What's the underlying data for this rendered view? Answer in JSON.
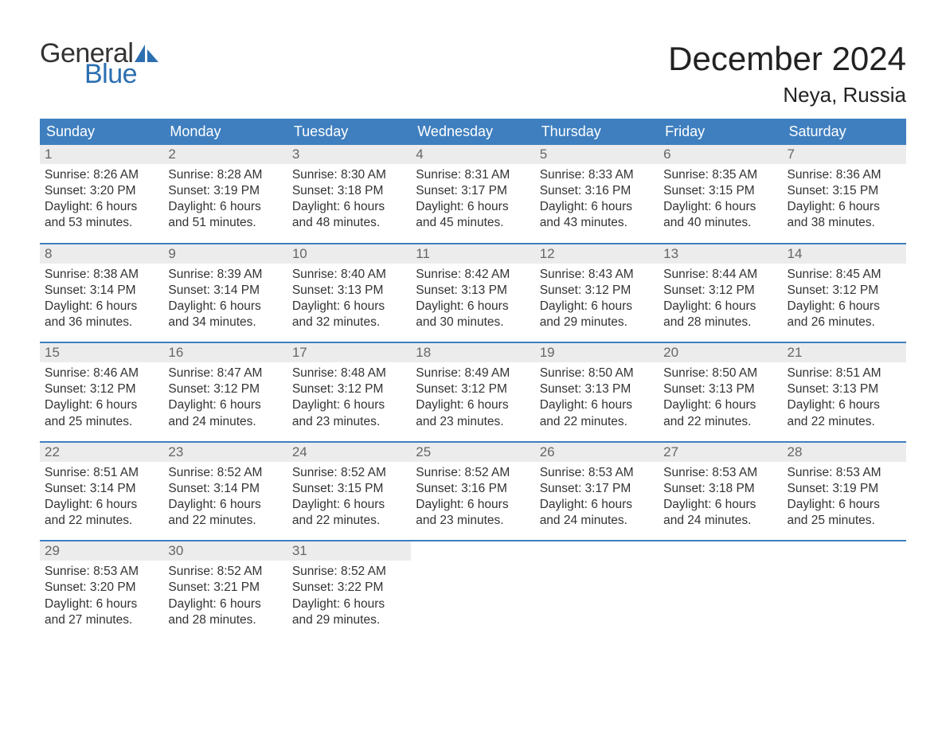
{
  "logo": {
    "text1": "General",
    "text2": "Blue",
    "sail_color": "#2c6fb0",
    "text_color": "#333333"
  },
  "title": "December 2024",
  "location": "Neya, Russia",
  "colors": {
    "header_bg": "#3f7fbf",
    "header_text": "#ffffff",
    "daynum_bg": "#ececec",
    "daynum_text": "#666666",
    "body_text": "#333333",
    "week_border": "#3f7fbf"
  },
  "weekdays": [
    "Sunday",
    "Monday",
    "Tuesday",
    "Wednesday",
    "Thursday",
    "Friday",
    "Saturday"
  ],
  "weeks": [
    [
      {
        "n": "1",
        "sunrise": "8:26 AM",
        "sunset": "3:20 PM",
        "dl1": "Daylight: 6 hours",
        "dl2": "and 53 minutes."
      },
      {
        "n": "2",
        "sunrise": "8:28 AM",
        "sunset": "3:19 PM",
        "dl1": "Daylight: 6 hours",
        "dl2": "and 51 minutes."
      },
      {
        "n": "3",
        "sunrise": "8:30 AM",
        "sunset": "3:18 PM",
        "dl1": "Daylight: 6 hours",
        "dl2": "and 48 minutes."
      },
      {
        "n": "4",
        "sunrise": "8:31 AM",
        "sunset": "3:17 PM",
        "dl1": "Daylight: 6 hours",
        "dl2": "and 45 minutes."
      },
      {
        "n": "5",
        "sunrise": "8:33 AM",
        "sunset": "3:16 PM",
        "dl1": "Daylight: 6 hours",
        "dl2": "and 43 minutes."
      },
      {
        "n": "6",
        "sunrise": "8:35 AM",
        "sunset": "3:15 PM",
        "dl1": "Daylight: 6 hours",
        "dl2": "and 40 minutes."
      },
      {
        "n": "7",
        "sunrise": "8:36 AM",
        "sunset": "3:15 PM",
        "dl1": "Daylight: 6 hours",
        "dl2": "and 38 minutes."
      }
    ],
    [
      {
        "n": "8",
        "sunrise": "8:38 AM",
        "sunset": "3:14 PM",
        "dl1": "Daylight: 6 hours",
        "dl2": "and 36 minutes."
      },
      {
        "n": "9",
        "sunrise": "8:39 AM",
        "sunset": "3:14 PM",
        "dl1": "Daylight: 6 hours",
        "dl2": "and 34 minutes."
      },
      {
        "n": "10",
        "sunrise": "8:40 AM",
        "sunset": "3:13 PM",
        "dl1": "Daylight: 6 hours",
        "dl2": "and 32 minutes."
      },
      {
        "n": "11",
        "sunrise": "8:42 AM",
        "sunset": "3:13 PM",
        "dl1": "Daylight: 6 hours",
        "dl2": "and 30 minutes."
      },
      {
        "n": "12",
        "sunrise": "8:43 AM",
        "sunset": "3:12 PM",
        "dl1": "Daylight: 6 hours",
        "dl2": "and 29 minutes."
      },
      {
        "n": "13",
        "sunrise": "8:44 AM",
        "sunset": "3:12 PM",
        "dl1": "Daylight: 6 hours",
        "dl2": "and 28 minutes."
      },
      {
        "n": "14",
        "sunrise": "8:45 AM",
        "sunset": "3:12 PM",
        "dl1": "Daylight: 6 hours",
        "dl2": "and 26 minutes."
      }
    ],
    [
      {
        "n": "15",
        "sunrise": "8:46 AM",
        "sunset": "3:12 PM",
        "dl1": "Daylight: 6 hours",
        "dl2": "and 25 minutes."
      },
      {
        "n": "16",
        "sunrise": "8:47 AM",
        "sunset": "3:12 PM",
        "dl1": "Daylight: 6 hours",
        "dl2": "and 24 minutes."
      },
      {
        "n": "17",
        "sunrise": "8:48 AM",
        "sunset": "3:12 PM",
        "dl1": "Daylight: 6 hours",
        "dl2": "and 23 minutes."
      },
      {
        "n": "18",
        "sunrise": "8:49 AM",
        "sunset": "3:12 PM",
        "dl1": "Daylight: 6 hours",
        "dl2": "and 23 minutes."
      },
      {
        "n": "19",
        "sunrise": "8:50 AM",
        "sunset": "3:13 PM",
        "dl1": "Daylight: 6 hours",
        "dl2": "and 22 minutes."
      },
      {
        "n": "20",
        "sunrise": "8:50 AM",
        "sunset": "3:13 PM",
        "dl1": "Daylight: 6 hours",
        "dl2": "and 22 minutes."
      },
      {
        "n": "21",
        "sunrise": "8:51 AM",
        "sunset": "3:13 PM",
        "dl1": "Daylight: 6 hours",
        "dl2": "and 22 minutes."
      }
    ],
    [
      {
        "n": "22",
        "sunrise": "8:51 AM",
        "sunset": "3:14 PM",
        "dl1": "Daylight: 6 hours",
        "dl2": "and 22 minutes."
      },
      {
        "n": "23",
        "sunrise": "8:52 AM",
        "sunset": "3:14 PM",
        "dl1": "Daylight: 6 hours",
        "dl2": "and 22 minutes."
      },
      {
        "n": "24",
        "sunrise": "8:52 AM",
        "sunset": "3:15 PM",
        "dl1": "Daylight: 6 hours",
        "dl2": "and 22 minutes."
      },
      {
        "n": "25",
        "sunrise": "8:52 AM",
        "sunset": "3:16 PM",
        "dl1": "Daylight: 6 hours",
        "dl2": "and 23 minutes."
      },
      {
        "n": "26",
        "sunrise": "8:53 AM",
        "sunset": "3:17 PM",
        "dl1": "Daylight: 6 hours",
        "dl2": "and 24 minutes."
      },
      {
        "n": "27",
        "sunrise": "8:53 AM",
        "sunset": "3:18 PM",
        "dl1": "Daylight: 6 hours",
        "dl2": "and 24 minutes."
      },
      {
        "n": "28",
        "sunrise": "8:53 AM",
        "sunset": "3:19 PM",
        "dl1": "Daylight: 6 hours",
        "dl2": "and 25 minutes."
      }
    ],
    [
      {
        "n": "29",
        "sunrise": "8:53 AM",
        "sunset": "3:20 PM",
        "dl1": "Daylight: 6 hours",
        "dl2": "and 27 minutes."
      },
      {
        "n": "30",
        "sunrise": "8:52 AM",
        "sunset": "3:21 PM",
        "dl1": "Daylight: 6 hours",
        "dl2": "and 28 minutes."
      },
      {
        "n": "31",
        "sunrise": "8:52 AM",
        "sunset": "3:22 PM",
        "dl1": "Daylight: 6 hours",
        "dl2": "and 29 minutes."
      },
      null,
      null,
      null,
      null
    ]
  ],
  "labels": {
    "sunrise_prefix": "Sunrise: ",
    "sunset_prefix": "Sunset: "
  }
}
